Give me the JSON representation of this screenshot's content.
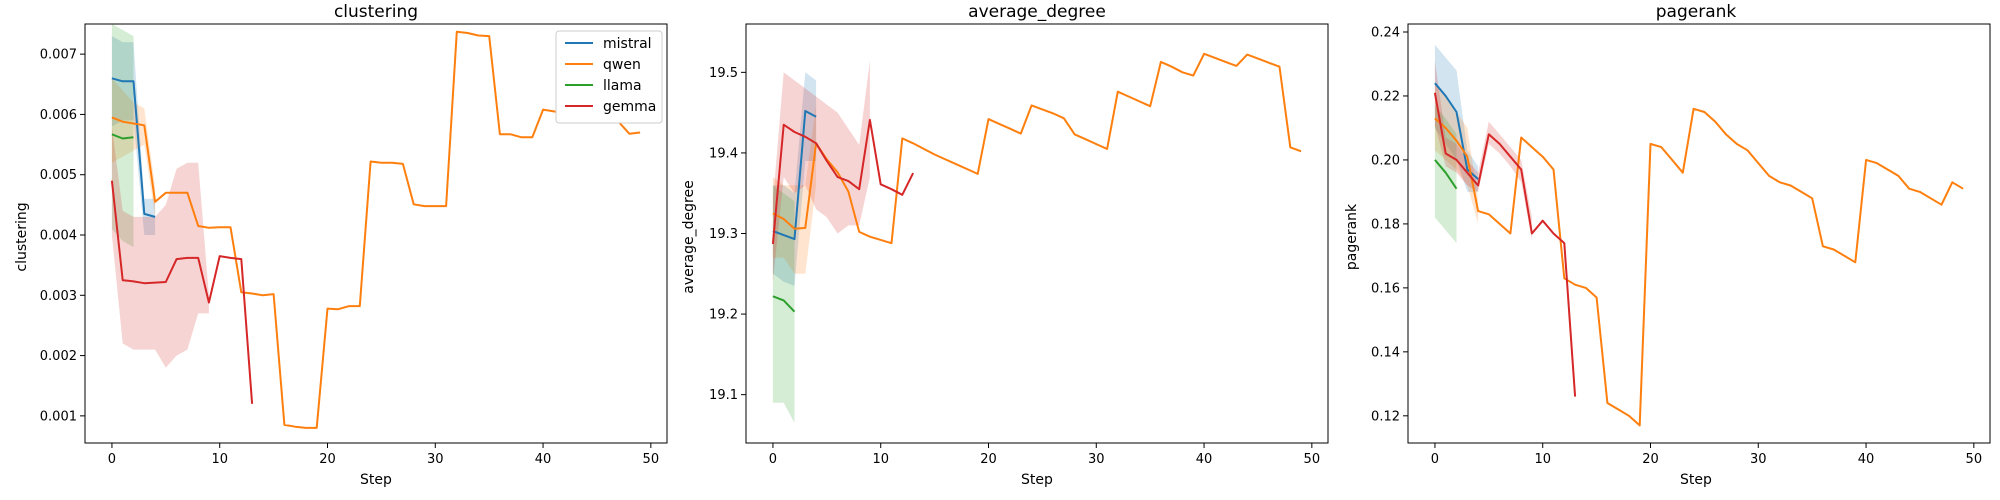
{
  "colors": {
    "mistral": "#1f77b4",
    "qwen": "#ff7f0e",
    "llama": "#2ca02c",
    "gemma": "#d62728"
  },
  "legend": {
    "placement": "top-right of first panel",
    "entries": [
      "mistral",
      "qwen",
      "llama",
      "gemma"
    ]
  },
  "chart_data": [
    {
      "type": "line",
      "title": "clustering",
      "xlabel": "Step",
      "ylabel": "clustering",
      "xlim": [
        -2.5,
        51.5
      ],
      "ylim": [
        0.00055,
        0.0075
      ],
      "xticks": [
        0,
        10,
        20,
        30,
        40,
        50
      ],
      "xtick_labels": [
        "0",
        "10",
        "20",
        "30",
        "40",
        "50"
      ],
      "yticks": [
        0.001,
        0.002,
        0.003,
        0.004,
        0.005,
        0.006,
        0.007
      ],
      "ytick_labels": [
        "0.001",
        "0.002",
        "0.003",
        "0.004",
        "0.005",
        "0.006",
        "0.007"
      ],
      "grid": false,
      "series": [
        {
          "name": "mistral",
          "x": [
            0,
            1,
            2,
            3,
            4
          ],
          "y": [
            0.0066,
            0.00655,
            0.00655,
            0.00435,
            0.0043
          ],
          "band_lo": [
            0.0058,
            0.0059,
            0.0059,
            0.004,
            0.004
          ],
          "band_hi": [
            0.0073,
            0.0072,
            0.0072,
            0.0046,
            0.0046
          ]
        },
        {
          "name": "qwen",
          "x": [
            0,
            1,
            2,
            3,
            4,
            5,
            6,
            7,
            8,
            9,
            10,
            11,
            12,
            13,
            14,
            15,
            16,
            17,
            18,
            19,
            20,
            21,
            22,
            23,
            24,
            25,
            26,
            27,
            28,
            29,
            30,
            31,
            32,
            33,
            34,
            35,
            36,
            37,
            38,
            39,
            40,
            41,
            42,
            43,
            44,
            45,
            46,
            47,
            48,
            49
          ],
          "y": [
            0.00595,
            0.00588,
            0.00585,
            0.00582,
            0.00455,
            0.0047,
            0.0047,
            0.0047,
            0.00415,
            0.00412,
            0.00413,
            0.00413,
            0.00305,
            0.00303,
            0.003,
            0.00302,
            0.00085,
            0.00082,
            0.0008,
            0.0008,
            0.00278,
            0.00277,
            0.00282,
            0.00282,
            0.00522,
            0.0052,
            0.0052,
            0.00518,
            0.00451,
            0.00448,
            0.00448,
            0.00448,
            0.00737,
            0.00735,
            0.00731,
            0.0073,
            0.00567,
            0.00567,
            0.00562,
            0.00562,
            0.00608,
            0.00605,
            0.00602,
            0.006,
            0.00592,
            0.0059,
            0.00588,
            0.00588,
            0.00568,
            0.0057
          ],
          "band_lo": [
            0.0052,
            0.0053,
            0.0054,
            0.0055,
            0.0043
          ],
          "band_hi": [
            0.0066,
            0.0064,
            0.0062,
            0.0061,
            0.0048
          ]
        },
        {
          "name": "llama",
          "x": [
            0,
            1,
            2
          ],
          "y": [
            0.00567,
            0.0056,
            0.00562
          ],
          "band_lo": [
            0.0041,
            0.0039,
            0.0038
          ],
          "band_hi": [
            0.0075,
            0.0074,
            0.0073
          ]
        },
        {
          "name": "gemma",
          "x": [
            0,
            1,
            2,
            3,
            4,
            5,
            6,
            7,
            8,
            9,
            10,
            11,
            12,
            13
          ],
          "y": [
            0.0049,
            0.00325,
            0.00323,
            0.0032,
            0.00321,
            0.00322,
            0.0036,
            0.00362,
            0.00362,
            0.00288,
            0.00365,
            0.00362,
            0.0036,
            0.0012
          ],
          "band_lo": [
            0.004,
            0.0022,
            0.0021,
            0.0021,
            0.0021,
            0.0018,
            0.002,
            0.0021,
            0.0027,
            0.0027
          ],
          "band_hi": [
            0.0058,
            0.0044,
            0.0043,
            0.0043,
            0.0043,
            0.0045,
            0.0051,
            0.0052,
            0.0052,
            0.003
          ]
        }
      ]
    },
    {
      "type": "line",
      "title": "average_degree",
      "xlabel": "Step",
      "ylabel": "average_degree",
      "xlim": [
        -2.5,
        51.5
      ],
      "ylim": [
        19.04,
        19.56
      ],
      "xticks": [
        0,
        10,
        20,
        30,
        40,
        50
      ],
      "xtick_labels": [
        "0",
        "10",
        "20",
        "30",
        "40",
        "50"
      ],
      "yticks": [
        19.1,
        19.2,
        19.3,
        19.4,
        19.5
      ],
      "ytick_labels": [
        "19.1",
        "19.2",
        "19.3",
        "19.4",
        "19.5"
      ],
      "grid": false,
      "series": [
        {
          "name": "mistral",
          "x": [
            0,
            1,
            2,
            3,
            4
          ],
          "y": [
            19.303,
            19.298,
            19.293,
            19.452,
            19.445
          ],
          "band_lo": [
            19.25,
            19.24,
            19.235,
            19.39,
            19.39
          ],
          "band_hi": [
            19.36,
            19.36,
            19.35,
            19.5,
            19.49
          ]
        },
        {
          "name": "qwen",
          "x": [
            0,
            1,
            2,
            3,
            4,
            5,
            6,
            7,
            8,
            9,
            10,
            11,
            12,
            13,
            14,
            15,
            16,
            17,
            18,
            19,
            20,
            21,
            22,
            23,
            24,
            25,
            26,
            27,
            28,
            29,
            30,
            31,
            32,
            33,
            34,
            35,
            36,
            37,
            38,
            39,
            40,
            41,
            42,
            43,
            44,
            45,
            46,
            47,
            48,
            49
          ],
          "y": [
            19.325,
            19.318,
            19.306,
            19.307,
            19.412,
            19.392,
            19.376,
            19.352,
            19.302,
            19.296,
            19.292,
            19.288,
            19.418,
            19.412,
            19.405,
            19.398,
            19.392,
            19.386,
            19.38,
            19.374,
            19.442,
            19.436,
            19.43,
            19.424,
            19.459,
            19.454,
            19.449,
            19.443,
            19.423,
            19.417,
            19.411,
            19.405,
            19.476,
            19.47,
            19.464,
            19.458,
            19.513,
            19.507,
            19.5,
            19.496,
            19.523,
            19.518,
            19.513,
            19.508,
            19.522,
            19.517,
            19.512,
            19.507,
            19.407,
            19.402
          ],
          "band_lo": [
            19.27,
            19.27,
            19.25,
            19.25,
            19.36
          ],
          "band_hi": [
            19.37,
            19.36,
            19.36,
            19.36,
            19.46
          ]
        },
        {
          "name": "llama",
          "x": [
            0,
            1,
            2
          ],
          "y": [
            19.222,
            19.217,
            19.203
          ],
          "band_lo": [
            19.09,
            19.09,
            19.065
          ],
          "band_hi": [
            19.36,
            19.35,
            19.34
          ]
        },
        {
          "name": "gemma",
          "x": [
            0,
            1,
            2,
            3,
            4,
            5,
            6,
            7,
            8,
            9,
            10,
            11,
            12,
            13
          ],
          "y": [
            19.287,
            19.435,
            19.426,
            19.42,
            19.412,
            19.39,
            19.37,
            19.365,
            19.355,
            19.441,
            19.361,
            19.355,
            19.348,
            19.375
          ],
          "band_lo": [
            19.24,
            19.37,
            19.35,
            19.36,
            19.33,
            19.32,
            19.3,
            19.31,
            19.31,
            19.37
          ],
          "band_hi": [
            19.34,
            19.5,
            19.49,
            19.48,
            19.47,
            19.46,
            19.45,
            19.43,
            19.41,
            19.515
          ]
        }
      ]
    },
    {
      "type": "line",
      "title": "pagerank",
      "xlabel": "Step",
      "ylabel": "pagerank",
      "xlim": [
        -2.5,
        51.5
      ],
      "ylim": [
        0.1115,
        0.2425
      ],
      "xticks": [
        0,
        10,
        20,
        30,
        40,
        50
      ],
      "xtick_labels": [
        "0",
        "10",
        "20",
        "30",
        "40",
        "50"
      ],
      "yticks": [
        0.12,
        0.14,
        0.16,
        0.18,
        0.2,
        0.22,
        0.24
      ],
      "ytick_labels": [
        "0.12",
        "0.14",
        "0.16",
        "0.18",
        "0.20",
        "0.22",
        "0.24"
      ],
      "grid": false,
      "series": [
        {
          "name": "mistral",
          "x": [
            0,
            1,
            2,
            3,
            4
          ],
          "y": [
            0.224,
            0.22,
            0.215,
            0.197,
            0.194
          ],
          "band_lo": [
            0.21,
            0.205,
            0.2,
            0.19,
            0.19
          ],
          "band_hi": [
            0.236,
            0.232,
            0.228,
            0.203,
            0.198
          ]
        },
        {
          "name": "qwen",
          "x": [
            0,
            1,
            2,
            3,
            4,
            5,
            6,
            7,
            8,
            9,
            10,
            11,
            12,
            13,
            14,
            15,
            16,
            17,
            18,
            19,
            20,
            21,
            22,
            23,
            24,
            25,
            26,
            27,
            28,
            29,
            30,
            31,
            32,
            33,
            34,
            35,
            36,
            37,
            38,
            39,
            40,
            41,
            42,
            43,
            44,
            45,
            46,
            47,
            48,
            49
          ],
          "y": [
            0.213,
            0.21,
            0.206,
            0.201,
            0.184,
            0.183,
            0.18,
            0.177,
            0.207,
            0.204,
            0.201,
            0.197,
            0.163,
            0.161,
            0.16,
            0.157,
            0.124,
            0.122,
            0.12,
            0.117,
            0.205,
            0.204,
            0.2,
            0.196,
            0.216,
            0.215,
            0.212,
            0.208,
            0.205,
            0.203,
            0.199,
            0.195,
            0.193,
            0.192,
            0.19,
            0.188,
            0.173,
            0.172,
            0.17,
            0.168,
            0.2,
            0.199,
            0.197,
            0.195,
            0.191,
            0.19,
            0.188,
            0.186,
            0.193,
            0.191
          ],
          "band_lo": [
            0.203,
            0.2,
            0.197,
            0.192,
            0.18
          ],
          "band_hi": [
            0.224,
            0.22,
            0.215,
            0.21,
            0.188
          ]
        },
        {
          "name": "llama",
          "x": [
            0,
            1,
            2
          ],
          "y": [
            0.2,
            0.196,
            0.191
          ],
          "band_lo": [
            0.182,
            0.178,
            0.174
          ],
          "band_hi": [
            0.217,
            0.213,
            0.208
          ]
        },
        {
          "name": "gemma",
          "x": [
            0,
            1,
            2,
            3,
            4,
            5,
            6,
            7,
            8,
            9,
            10,
            11,
            12,
            13
          ],
          "y": [
            0.221,
            0.202,
            0.2,
            0.196,
            0.192,
            0.208,
            0.205,
            0.201,
            0.197,
            0.177,
            0.181,
            0.177,
            0.174,
            0.126
          ],
          "band_lo": [
            0.211,
            0.198,
            0.196,
            0.192,
            0.19,
            0.205,
            0.202,
            0.198,
            0.193,
            0.175
          ],
          "band_hi": [
            0.231,
            0.207,
            0.205,
            0.2,
            0.196,
            0.212,
            0.208,
            0.204,
            0.2,
            0.182
          ]
        }
      ]
    }
  ]
}
